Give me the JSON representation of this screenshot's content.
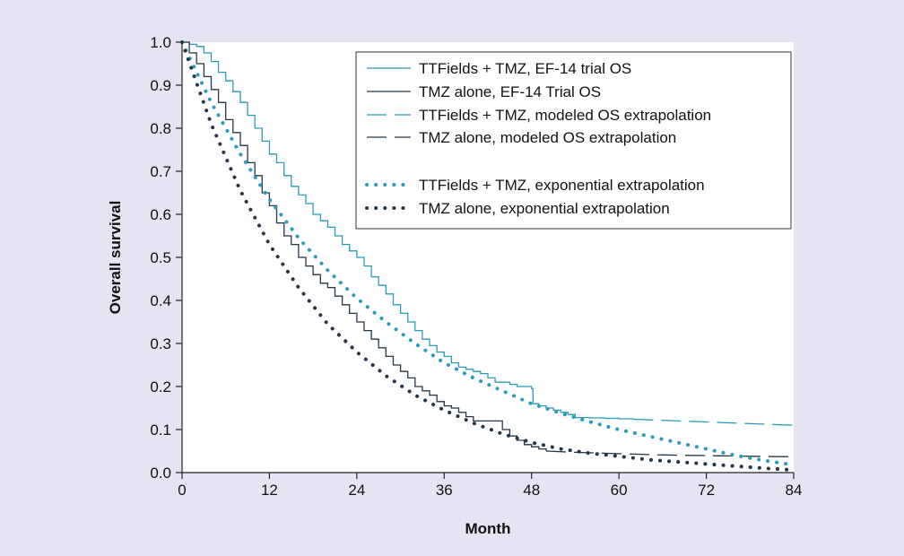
{
  "chart_data": {
    "type": "line",
    "title": "",
    "xlabel": "Month",
    "ylabel": "Overall survival",
    "xlim": [
      0,
      84
    ],
    "ylim": [
      0,
      1.0
    ],
    "xticks": [
      0,
      12,
      24,
      36,
      48,
      60,
      72,
      84
    ],
    "xtick_labels": [
      "0",
      "12",
      "24",
      "36",
      "48",
      "60",
      "72",
      "84"
    ],
    "yticks": [
      0,
      0.1,
      0.2,
      0.3,
      0.4,
      0.5,
      0.6,
      0.7,
      0.8,
      0.9,
      1.0
    ],
    "ytick_labels": [
      "0.0",
      "0.1",
      "0.2",
      "0.3",
      "0.4",
      "0.5",
      "0.6",
      "0.7",
      "0.8",
      "0.9",
      "1.0"
    ],
    "grid": false,
    "legend_position": "top-right",
    "colors": {
      "ttfields": "#2a9bb8",
      "tmz": "#253648",
      "background": "#e6e4f2",
      "plot_bg": "#ffffff"
    },
    "series": [
      {
        "name": "TTFields + TMZ, EF-14 trial OS",
        "style": "solid",
        "color": "#2a9bb8",
        "step": true,
        "x": [
          0,
          1,
          2,
          3,
          4,
          5,
          6,
          7,
          8,
          9,
          10,
          11,
          12,
          13,
          14,
          15,
          16,
          17,
          18,
          19,
          20,
          21,
          22,
          23,
          24,
          25,
          26,
          27,
          28,
          29,
          30,
          31,
          32,
          33,
          34,
          35,
          36,
          37,
          38,
          39,
          40,
          41,
          42,
          43,
          44,
          45,
          46,
          47,
          48,
          48.2,
          49,
          50,
          51,
          52,
          53,
          54,
          56,
          58,
          60,
          62
        ],
        "y": [
          1.0,
          0.995,
          0.99,
          0.975,
          0.955,
          0.93,
          0.91,
          0.885,
          0.86,
          0.83,
          0.8,
          0.77,
          0.74,
          0.72,
          0.69,
          0.665,
          0.645,
          0.625,
          0.6,
          0.585,
          0.57,
          0.55,
          0.53,
          0.515,
          0.5,
          0.48,
          0.455,
          0.435,
          0.415,
          0.39,
          0.37,
          0.35,
          0.33,
          0.31,
          0.295,
          0.28,
          0.27,
          0.255,
          0.245,
          0.24,
          0.235,
          0.23,
          0.22,
          0.21,
          0.21,
          0.205,
          0.2,
          0.2,
          0.195,
          0.16,
          0.155,
          0.15,
          0.145,
          0.14,
          0.135,
          0.128,
          0.127,
          0.126,
          0.125,
          0.124
        ]
      },
      {
        "name": "TMZ alone, EF-14 Trial OS",
        "style": "solid",
        "color": "#253648",
        "step": true,
        "x": [
          0,
          1,
          2,
          3,
          4,
          5,
          6,
          7,
          8,
          9,
          10,
          11,
          12,
          13,
          14,
          15,
          16,
          17,
          18,
          19,
          20,
          21,
          22,
          23,
          24,
          25,
          26,
          27,
          28,
          29,
          30,
          31,
          32,
          33,
          34,
          35,
          36,
          37,
          38,
          39,
          40,
          41,
          42,
          43,
          44,
          45,
          46,
          47,
          48,
          49,
          50
        ],
        "y": [
          1.0,
          0.975,
          0.95,
          0.92,
          0.89,
          0.86,
          0.82,
          0.79,
          0.76,
          0.72,
          0.69,
          0.65,
          0.62,
          0.58,
          0.55,
          0.53,
          0.5,
          0.48,
          0.46,
          0.44,
          0.43,
          0.41,
          0.39,
          0.37,
          0.35,
          0.33,
          0.31,
          0.29,
          0.27,
          0.25,
          0.235,
          0.22,
          0.2,
          0.19,
          0.18,
          0.165,
          0.155,
          0.15,
          0.14,
          0.13,
          0.12,
          0.12,
          0.12,
          0.12,
          0.1,
          0.085,
          0.075,
          0.065,
          0.06,
          0.055,
          0.05
        ]
      },
      {
        "name": "TTFields + TMZ, modeled OS extrapolation",
        "style": "dashed",
        "color": "#2a9bb8",
        "x": [
          62,
          84
        ],
        "y": [
          0.124,
          0.11
        ]
      },
      {
        "name": "TMZ alone, modeled OS extrapolation",
        "style": "dashed",
        "color": "#253648",
        "x": [
          50,
          54,
          58,
          62,
          66,
          70,
          74,
          78,
          82,
          84
        ],
        "y": [
          0.05,
          0.047,
          0.045,
          0.043,
          0.041,
          0.04,
          0.039,
          0.038,
          0.037,
          0.037
        ]
      },
      {
        "name": "TTFields + TMZ, exponential extrapolation",
        "style": "dotted",
        "color": "#2a9bb8",
        "x": [
          0,
          4,
          8,
          12,
          16,
          20,
          24,
          28,
          32,
          36,
          40,
          44,
          48,
          52,
          56,
          60,
          64,
          68,
          72,
          76,
          80,
          84
        ],
        "y": [
          1.0,
          0.86,
          0.74,
          0.635,
          0.545,
          0.47,
          0.405,
          0.35,
          0.3,
          0.255,
          0.22,
          0.19,
          0.16,
          0.138,
          0.118,
          0.1,
          0.085,
          0.07,
          0.055,
          0.04,
          0.028,
          0.018
        ]
      },
      {
        "name": "TMZ alone, exponential extrapolation",
        "style": "dotted",
        "color": "#253648",
        "x": [
          0,
          4,
          8,
          12,
          16,
          20,
          24,
          28,
          32,
          36,
          40,
          44,
          48,
          52,
          56,
          60,
          64,
          68,
          72,
          76,
          80,
          84
        ],
        "y": [
          1.0,
          0.81,
          0.655,
          0.53,
          0.43,
          0.345,
          0.28,
          0.225,
          0.18,
          0.145,
          0.115,
          0.09,
          0.07,
          0.055,
          0.045,
          0.038,
          0.03,
          0.025,
          0.02,
          0.015,
          0.01,
          0.006
        ]
      }
    ]
  }
}
